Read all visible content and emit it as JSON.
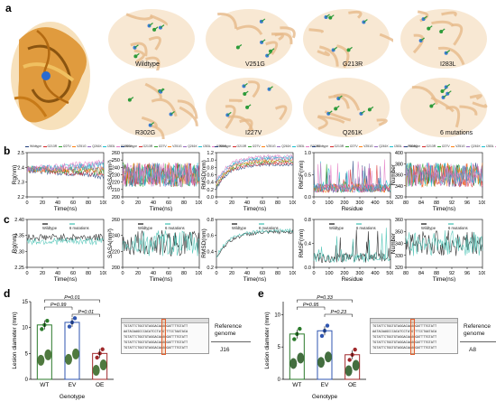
{
  "panels": {
    "a": "a",
    "b": "b",
    "c": "c",
    "d": "d",
    "e": "e"
  },
  "panel_a": {
    "structures": [
      "Wildtype",
      "V251G",
      "G213R",
      "I283L",
      "R302G",
      "I227V",
      "Q261K",
      "6 mutations"
    ]
  },
  "panel_b": {
    "legend": [
      "Wildtype",
      "G213R",
      "I227V",
      "V251G",
      "Q261K",
      "I283L",
      "R302G"
    ],
    "colors": [
      "#1f3d7a",
      "#d62728",
      "#2ca02c",
      "#ff7f0e",
      "#9467bd",
      "#17becf",
      "#e377c2"
    ],
    "plots": [
      {
        "ylabel": "Rg(nm)",
        "xlabel": "Time(ns)",
        "yticks": [
          "2.2",
          "2.3",
          "2.4",
          "2.5"
        ],
        "xticks": [
          "0",
          "20",
          "40",
          "60",
          "80",
          "100"
        ]
      },
      {
        "ylabel": "SASA(nm²)",
        "xlabel": "Time(ns)",
        "yticks": [
          "200",
          "210",
          "220",
          "230",
          "240",
          "250",
          "260"
        ],
        "xticks": [
          "0",
          "20",
          "40",
          "60",
          "80",
          "100"
        ]
      },
      {
        "ylabel": "RMSD(nm)",
        "xlabel": "Time(ns)",
        "yticks": [
          "0.0",
          "0.2",
          "0.4",
          "0.6",
          "0.8",
          "1.0",
          "1.2"
        ],
        "xticks": [
          "0",
          "20",
          "40",
          "60",
          "80",
          "100"
        ]
      },
      {
        "ylabel": "RMSF(nm)",
        "xlabel": "Residue",
        "yticks": [
          "0.0",
          "0.5",
          "1.0"
        ],
        "xticks": [
          "0",
          "100",
          "200",
          "300",
          "400",
          "500"
        ]
      },
      {
        "ylabel": "Number",
        "xlabel": "Time(ns)",
        "yticks": [
          "320",
          "340",
          "360",
          "380",
          "400"
        ],
        "xticks": [
          "80",
          "84",
          "88",
          "92",
          "96",
          "100"
        ]
      }
    ]
  },
  "panel_c": {
    "legend": [
      "Wildtype",
      "6 mutations"
    ],
    "colors": [
      "#111111",
      "#3fbfb0"
    ],
    "plots": [
      {
        "ylabel": "Rg(nm)",
        "xlabel": "Time(ns)",
        "yticks": [
          "2.25",
          "2.30",
          "2.35",
          "2.40"
        ],
        "xticks": [
          "0",
          "20",
          "40",
          "60",
          "80",
          "100"
        ]
      },
      {
        "ylabel": "SASA(nm²)",
        "xlabel": "Time(ns)",
        "yticks": [
          "200",
          "220",
          "240",
          "260"
        ],
        "xticks": [
          "0",
          "20",
          "40",
          "60",
          "80",
          "100"
        ]
      },
      {
        "ylabel": "RMSD(nm)",
        "xlabel": "Time(ns)",
        "yticks": [
          "0.2",
          "0.4",
          "0.6",
          "0.8"
        ],
        "xticks": [
          "0",
          "20",
          "40",
          "60",
          "80",
          "100"
        ]
      },
      {
        "ylabel": "RMSF(nm)",
        "xlabel": "Residue",
        "yticks": [
          "0.0",
          "0.4",
          "0.8"
        ],
        "xticks": [
          "0",
          "100",
          "200",
          "300",
          "400",
          "500"
        ]
      },
      {
        "ylabel": "Number",
        "xlabel": "Time(ns)",
        "yticks": [
          "320",
          "330",
          "340",
          "350",
          "360"
        ],
        "xticks": [
          "80",
          "84",
          "88",
          "92",
          "96",
          "100"
        ]
      }
    ]
  },
  "panel_d": {
    "ylabel": "Lesion diameter (mm)",
    "xlabel": "Genotype",
    "categories": [
      "WT",
      "EV",
      "OE"
    ],
    "values": [
      10.5,
      11.0,
      5.0
    ],
    "yticks": [
      "0",
      "5",
      "10",
      "15"
    ],
    "ylim": [
      0,
      15
    ],
    "pvalues": [
      "P=0.01",
      "P=0.99",
      "P=0.01"
    ],
    "bar_colors": [
      "#2a7a2a",
      "#2f55b0",
      "#a0282a"
    ],
    "gene_labels": [
      "Reference genome",
      "J16"
    ]
  },
  "panel_e": {
    "ylabel": "Lesion diameter (mm)",
    "xlabel": "Genotype",
    "categories": [
      "WT",
      "EV",
      "OE"
    ],
    "values": [
      7.0,
      7.5,
      3.8
    ],
    "yticks": [
      "0",
      "5",
      "10"
    ],
    "ylim": [
      0,
      12
    ],
    "pvalues": [
      "P=0.33",
      "P=0.95",
      "P=0.23"
    ],
    "bar_colors": [
      "#2a7a2a",
      "#2f55b0",
      "#a0282a"
    ],
    "gene_labels": [
      "Reference genome",
      "A8"
    ]
  }
}
